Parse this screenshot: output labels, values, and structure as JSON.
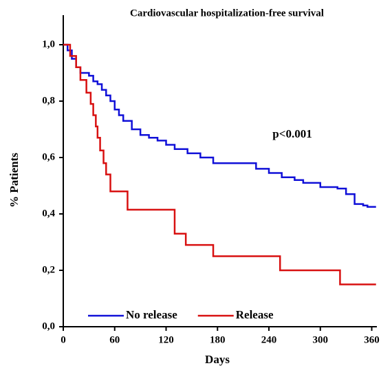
{
  "chart_data": {
    "type": "step",
    "title": "Cardiovascular hospitalization-free survival",
    "annotation": "p<0.001",
    "xlabel": "Days",
    "ylabel": "% Patients",
    "xlim": [
      0,
      366
    ],
    "ylim": [
      0,
      1.1
    ],
    "xticks": [
      0,
      60,
      120,
      180,
      240,
      300,
      360
    ],
    "yticks": [
      {
        "value": 0,
        "label": "0,0"
      },
      {
        "value": 0.2,
        "label": "0,2"
      },
      {
        "value": 0.4,
        "label": "0,4"
      },
      {
        "value": 0.6,
        "label": "0,6"
      },
      {
        "value": 0.8,
        "label": "0,8"
      },
      {
        "value": 1,
        "label": "1,0"
      }
    ],
    "legend": "lower left",
    "series": [
      {
        "name": "No release",
        "color": "#1010d8",
        "x": [
          0,
          5,
          10,
          15,
          20,
          30,
          35,
          40,
          45,
          50,
          55,
          60,
          65,
          70,
          80,
          90,
          100,
          110,
          120,
          130,
          145,
          160,
          175,
          225,
          240,
          255,
          270,
          280,
          300,
          320,
          330,
          340,
          350,
          355,
          365
        ],
        "values": [
          1.0,
          0.98,
          0.95,
          0.92,
          0.9,
          0.89,
          0.87,
          0.86,
          0.84,
          0.82,
          0.8,
          0.77,
          0.75,
          0.73,
          0.7,
          0.68,
          0.67,
          0.66,
          0.645,
          0.63,
          0.615,
          0.6,
          0.58,
          0.56,
          0.545,
          0.53,
          0.52,
          0.51,
          0.495,
          0.49,
          0.47,
          0.435,
          0.43,
          0.425,
          0.425
        ]
      },
      {
        "name": "Release",
        "color": "#d81010",
        "x": [
          0,
          8,
          15,
          20,
          27,
          32,
          35,
          38,
          40,
          43,
          47,
          50,
          55,
          75,
          130,
          143,
          175,
          253,
          323,
          365
        ],
        "values": [
          1.0,
          0.96,
          0.92,
          0.875,
          0.83,
          0.79,
          0.75,
          0.71,
          0.67,
          0.625,
          0.58,
          0.54,
          0.48,
          0.415,
          0.33,
          0.29,
          0.25,
          0.2,
          0.15,
          0.15
        ]
      }
    ]
  }
}
